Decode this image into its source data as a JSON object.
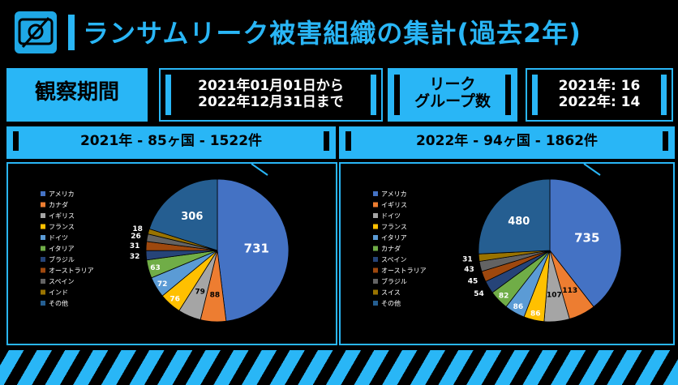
{
  "header": {
    "title": "ランサムリーク被害組織の集計(過去2年)"
  },
  "period": {
    "label": "観察期間",
    "line1": "2021年01月01日から",
    "line2": "2022年12月31日まで"
  },
  "groups": {
    "label_line1": "リーク",
    "label_line2": "グループ数",
    "line1": "2021年: 16",
    "line2": "2022年: 14"
  },
  "panels": [
    {
      "header": "2021年 - 85ヶ国 - 1522件"
    },
    {
      "header": "2022年 - 94ヶ国 - 1862件"
    }
  ],
  "colors": {
    "accent": "#29b6f6",
    "background": "#000000"
  },
  "chart_data": [
    {
      "type": "pie",
      "categories": [
        "アメリカ",
        "カナダ",
        "イギリス",
        "フランス",
        "ドイツ",
        "イタリア",
        "ブラジル",
        "オーストラリア",
        "スペイン",
        "インド",
        "その他"
      ],
      "values": [
        731,
        88,
        79,
        76,
        72,
        63,
        32,
        31,
        26,
        18,
        306
      ],
      "colors": [
        "#4472c4",
        "#ed7d31",
        "#a5a5a5",
        "#ffc000",
        "#5b9bd5",
        "#70ad47",
        "#264478",
        "#9e480e",
        "#636363",
        "#997300",
        "#255e91"
      ],
      "legend": "left"
    },
    {
      "type": "pie",
      "categories": [
        "アメリカ",
        "イギリス",
        "ドイツ",
        "フランス",
        "イタリア",
        "カナダ",
        "スペイン",
        "オーストラリア",
        "ブラジル",
        "スイス",
        "その他"
      ],
      "values": [
        735,
        113,
        107,
        86,
        86,
        82,
        54,
        45,
        43,
        31,
        480
      ],
      "colors": [
        "#4472c4",
        "#ed7d31",
        "#a5a5a5",
        "#ffc000",
        "#5b9bd5",
        "#70ad47",
        "#264478",
        "#9e480e",
        "#636363",
        "#997300",
        "#255e91"
      ],
      "legend": "left"
    }
  ]
}
